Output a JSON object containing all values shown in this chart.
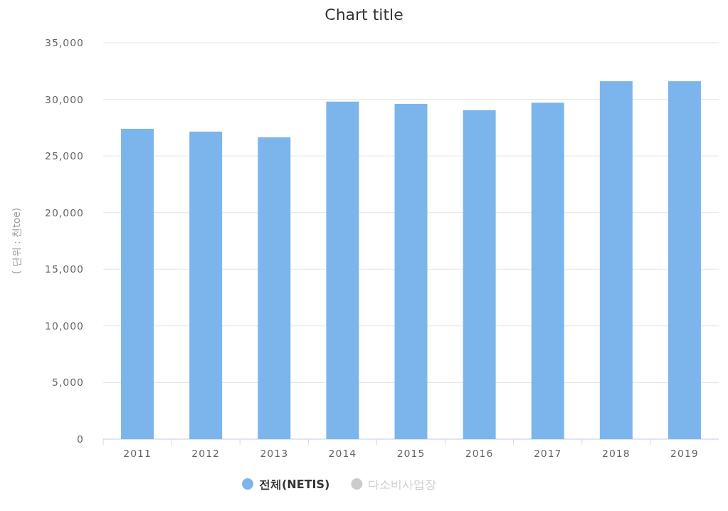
{
  "chart_data": {
    "type": "bar",
    "title": "Chart title",
    "ylabel": "( 단위 : 천toe)",
    "categories": [
      "2011",
      "2012",
      "2013",
      "2014",
      "2015",
      "2016",
      "2017",
      "2018",
      "2019"
    ],
    "series": [
      {
        "name": "전체(NETIS)",
        "color": "#7cb5ec",
        "values": [
          27400,
          27150,
          26650,
          29800,
          29600,
          29050,
          29700,
          31600,
          31600
        ]
      },
      {
        "name": "다소비사업장",
        "color": "#cccccc",
        "values": [
          null,
          null,
          null,
          null,
          null,
          null,
          null,
          null,
          null
        ]
      }
    ],
    "ylim": [
      0,
      35000
    ],
    "yticks": [
      {
        "value": 0,
        "label": "0"
      },
      {
        "value": 5000,
        "label": "5,000"
      },
      {
        "value": 10000,
        "label": "10,000"
      },
      {
        "value": 15000,
        "label": "15,000"
      },
      {
        "value": 20000,
        "label": "20,000"
      },
      {
        "value": 25000,
        "label": "25,000"
      },
      {
        "value": 30000,
        "label": "30,000"
      },
      {
        "value": 35000,
        "label": "35,000"
      }
    ],
    "grid": "y",
    "legend": "bottom"
  }
}
